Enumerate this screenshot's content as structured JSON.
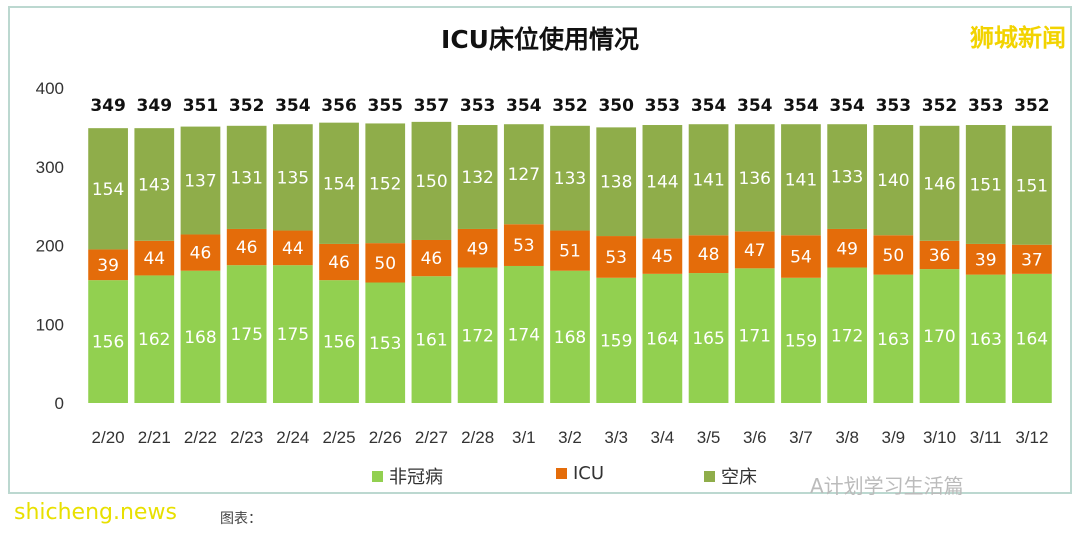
{
  "title": "ICU床位使用情况",
  "watermark_top": "狮城新闻",
  "watermark_bottom_left": "shicheng.news",
  "watermark_bottom_right": "A计划学习生活篇",
  "note": "图表：",
  "chart_data": {
    "type": "bar",
    "stacked": true,
    "title": "ICU床位使用情况",
    "categories": [
      "2/20",
      "2/21",
      "2/22",
      "2/23",
      "2/24",
      "2/25",
      "2/26",
      "2/27",
      "2/28",
      "3/1",
      "3/2",
      "3/3",
      "3/4",
      "3/5",
      "3/6",
      "3/7",
      "3/8",
      "3/9",
      "3/10",
      "3/11",
      "3/12"
    ],
    "series": [
      {
        "name": "非冠病",
        "color": "#92d050",
        "values": [
          156,
          162,
          168,
          175,
          175,
          156,
          153,
          161,
          172,
          174,
          168,
          159,
          164,
          165,
          171,
          159,
          172,
          163,
          170,
          163,
          164
        ]
      },
      {
        "name": "ICU",
        "color": "#e46c0a",
        "values": [
          39,
          44,
          46,
          46,
          44,
          46,
          50,
          46,
          49,
          53,
          51,
          53,
          45,
          48,
          47,
          54,
          49,
          50,
          36,
          39,
          37
        ]
      },
      {
        "name": "空床",
        "color": "#8fad4a",
        "values": [
          154,
          143,
          137,
          131,
          135,
          154,
          152,
          150,
          132,
          127,
          133,
          138,
          144,
          141,
          136,
          141,
          133,
          140,
          146,
          151,
          151
        ]
      }
    ],
    "totals": [
      349,
      349,
      351,
      352,
      354,
      356,
      355,
      357,
      353,
      354,
      352,
      350,
      353,
      354,
      354,
      354,
      354,
      353,
      352,
      353,
      352
    ],
    "yticks": [
      0,
      100,
      200,
      300,
      400
    ],
    "ylim": [
      0,
      400
    ],
    "grid": false,
    "legend": "bottom"
  }
}
